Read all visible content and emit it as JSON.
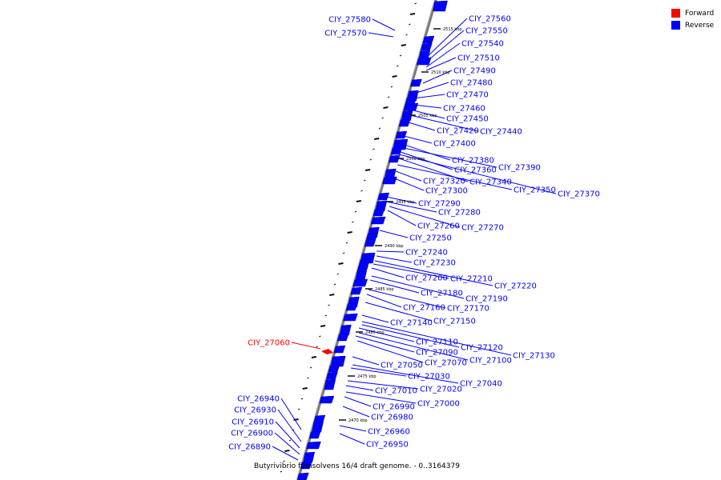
{
  "legend": {
    "forward": {
      "label": "Forward",
      "color": "#ff0000"
    },
    "reverse": {
      "label": "Reverse",
      "color": "#0000ff"
    }
  },
  "caption": "Butyrivibrio fibrisolvens 16/4 draft genome. - 0..3164379",
  "scale_labels": [
    "2515 kbp",
    "2510 kbp",
    "2505 kbp",
    "2500 kbp",
    "2495 kbp",
    "2490 kbp",
    "2485 kbp",
    "2480 kbp",
    "2475 kbp",
    "2470 kbp"
  ],
  "gene_labels": [
    "CIY_27580",
    "CIY_27570",
    "CIY_27560",
    "CIY_27550",
    "CIY_27540",
    "CIY_27510",
    "CIY_27490",
    "CIY_27480",
    "CIY_27470",
    "CIY_27460",
    "CIY_27450",
    "CIY_27420",
    "CIY_27440",
    "CIY_27400",
    "CIY_27380",
    "CIY_27360",
    "CIY_27390",
    "CIY_27320",
    "CIY_27340",
    "CIY_27350",
    "CIY_27370",
    "CIY_27300",
    "CIY_27290",
    "CIY_27280",
    "CIY_27260",
    "CIY_27270",
    "CIY_27250",
    "CIY_27240",
    "CIY_27230",
    "CIY_27200",
    "CIY_27210",
    "CIY_27220",
    "CIY_27180",
    "CIY_27190",
    "CIY_27160",
    "CIY_27170",
    "CIY_27150",
    "CIY_27140",
    "CIY_27110",
    "CIY_27120",
    "CIY_27130",
    "CIY_27090",
    "CIY_27060",
    "CIY_27100",
    "CIY_27070",
    "CIY_27050",
    "CIY_27030",
    "CIY_27040",
    "CIY_27020",
    "CIY_27010",
    "CIY_27000",
    "CIY_26990",
    "CIY_26980",
    "CIY_26940",
    "CIY_26930",
    "CIY_26910",
    "CIY_26960",
    "CIY_26900",
    "CIY_26890",
    "CIY_26950"
  ]
}
